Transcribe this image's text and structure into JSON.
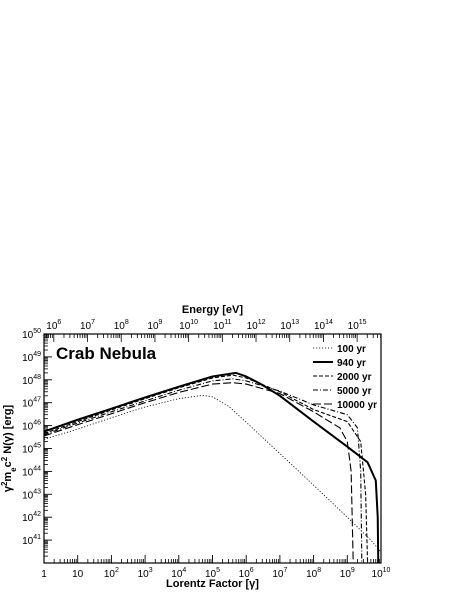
{
  "chart_data": {
    "type": "line",
    "title": "Crab Nebula",
    "xlabel": "Lorentz Factor [γ]",
    "ylabel": "γ²m_ec² N(γ) [erg]",
    "x2label": "Energy [eV]",
    "x_scale": "log",
    "y_scale": "log",
    "xlim": [
      1,
      10000000000
    ],
    "ylim": [
      1e+40,
      1e+50
    ],
    "x_ticks": [
      {
        "value": 1,
        "base": "1",
        "exp": ""
      },
      {
        "value": 10,
        "base": "10",
        "exp": ""
      },
      {
        "value": 100,
        "base": "10",
        "exp": "2"
      },
      {
        "value": 1000,
        "base": "10",
        "exp": "3"
      },
      {
        "value": 10000,
        "base": "10",
        "exp": "4"
      },
      {
        "value": 100000,
        "base": "10",
        "exp": "5"
      },
      {
        "value": 1000000,
        "base": "10",
        "exp": "6"
      },
      {
        "value": 10000000,
        "base": "10",
        "exp": "7"
      },
      {
        "value": 100000000,
        "base": "10",
        "exp": "8"
      },
      {
        "value": 1000000000,
        "base": "10",
        "exp": "9"
      },
      {
        "value": 10000000000,
        "base": "10",
        "exp": "10"
      }
    ],
    "y_ticks": [
      {
        "value": 1e+41,
        "base": "10",
        "exp": "41"
      },
      {
        "value": 1e+42,
        "base": "10",
        "exp": "42"
      },
      {
        "value": 1e+43,
        "base": "10",
        "exp": "43"
      },
      {
        "value": 1e+44,
        "base": "10",
        "exp": "44"
      },
      {
        "value": 1e+45,
        "base": "10",
        "exp": "45"
      },
      {
        "value": 1e+46,
        "base": "10",
        "exp": "46"
      },
      {
        "value": 1e+47,
        "base": "10",
        "exp": "47"
      },
      {
        "value": 1e+48,
        "base": "10",
        "exp": "48"
      },
      {
        "value": 1e+49,
        "base": "10",
        "exp": "49"
      },
      {
        "value": 1e+50,
        "base": "10",
        "exp": "50"
      }
    ],
    "top_ticks": [
      {
        "value": 1000000.0,
        "base": "10",
        "exp": "6"
      },
      {
        "value": 10000000.0,
        "base": "10",
        "exp": "7"
      },
      {
        "value": 100000000.0,
        "base": "10",
        "exp": "8"
      },
      {
        "value": 1000000000.0,
        "base": "10",
        "exp": "9"
      },
      {
        "value": 10000000000.0,
        "base": "10",
        "exp": "10"
      },
      {
        "value": 100000000000.0,
        "base": "10",
        "exp": "11"
      },
      {
        "value": 1000000000000.0,
        "base": "10",
        "exp": "12"
      },
      {
        "value": 10000000000000.0,
        "base": "10",
        "exp": "13"
      },
      {
        "value": 100000000000000.0,
        "base": "10",
        "exp": "14"
      },
      {
        "value": 1000000000000000.0,
        "base": "10",
        "exp": "15"
      }
    ],
    "grid": false,
    "legend_position": "top-right",
    "series": [
      {
        "name": "100 yr",
        "dash": "dotted",
        "weight": "thin",
        "points": [
          [
            1,
            2.5e+45
          ],
          [
            10,
            7e+45
          ],
          [
            100,
            2.2e+46
          ],
          [
            1000,
            6.5e+46
          ],
          [
            10000,
            1.5e+47
          ],
          [
            50000,
            2.1e+47
          ],
          [
            100000,
            1.8e+47
          ],
          [
            300000,
            7e+46
          ],
          [
            1000000,
            1.4e+46
          ],
          [
            10000000,
            6e+44
          ],
          [
            100000000,
            2.5e+43
          ],
          [
            1000000000,
            1e+42
          ],
          [
            5000000000,
            1e+41
          ],
          [
            10000000000,
            3e+40
          ]
        ]
      },
      {
        "name": "940 yr",
        "dash": "solid",
        "weight": "thick",
        "points": [
          [
            1,
            5.5e+45
          ],
          [
            10,
            1.8e+46
          ],
          [
            100,
            5.5e+46
          ],
          [
            1000,
            1.7e+47
          ],
          [
            10000,
            5e+47
          ],
          [
            100000,
            1.4e+48
          ],
          [
            500000,
            2e+48
          ],
          [
            1000000,
            1.4e+48
          ],
          [
            3000000,
            6e+47
          ],
          [
            10000000,
            2e+47
          ],
          [
            100000000,
            1.5e+46
          ],
          [
            1000000000,
            1.2e+45
          ],
          [
            4000000000,
            2.5e+44
          ],
          [
            7000000000,
            4e+43
          ],
          [
            8000000000,
            1e+42
          ],
          [
            8300000000,
            1e+40
          ]
        ]
      },
      {
        "name": "2000 yr",
        "dash": "short-dash",
        "weight": "normal",
        "points": [
          [
            1,
            4.5e+45
          ],
          [
            10,
            1.5e+46
          ],
          [
            100,
            4.8e+46
          ],
          [
            1000,
            1.5e+47
          ],
          [
            10000,
            4.5e+47
          ],
          [
            100000,
            1.2e+48
          ],
          [
            400000,
            1.6e+48
          ],
          [
            1000000,
            1.2e+48
          ],
          [
            10000000,
            3e+47
          ],
          [
            100000000,
            5e+46
          ],
          [
            1000000000,
            1.5e+46
          ],
          [
            2500000000,
            2e+45
          ],
          [
            3500000000,
            1e+43
          ],
          [
            4000000000,
            1e+40
          ]
        ]
      },
      {
        "name": "5000 yr",
        "dash": "dash-dot",
        "weight": "normal",
        "points": [
          [
            1,
            4e+45
          ],
          [
            10,
            1.3e+46
          ],
          [
            100,
            4e+46
          ],
          [
            1000,
            1.2e+47
          ],
          [
            10000,
            3.5e+47
          ],
          [
            100000,
            9e+47
          ],
          [
            400000,
            1.1e+48
          ],
          [
            1000000,
            9e+47
          ],
          [
            10000000,
            3.2e+47
          ],
          [
            100000000,
            8e+46
          ],
          [
            1000000000,
            3e+46
          ],
          [
            2000000000,
            8e+45
          ],
          [
            2500000000,
            1e+44
          ],
          [
            2700000000,
            1e+40
          ]
        ]
      },
      {
        "name": "10000 yr",
        "dash": "long-dash",
        "weight": "normal",
        "points": [
          [
            1,
            3.5e+45
          ],
          [
            10,
            1.1e+46
          ],
          [
            100,
            3.3e+46
          ],
          [
            1000,
            1e+47
          ],
          [
            10000,
            2.8e+47
          ],
          [
            100000,
            6.5e+47
          ],
          [
            400000,
            7.5e+47
          ],
          [
            1000000,
            6.5e+47
          ],
          [
            10000000,
            2.5e+47
          ],
          [
            100000000,
            4e+46
          ],
          [
            600000000,
            8e+45
          ],
          [
            1000000000,
            2e+45
          ],
          [
            1300000000,
            1e+44
          ],
          [
            1500000000,
            1e+40
          ]
        ]
      }
    ]
  }
}
